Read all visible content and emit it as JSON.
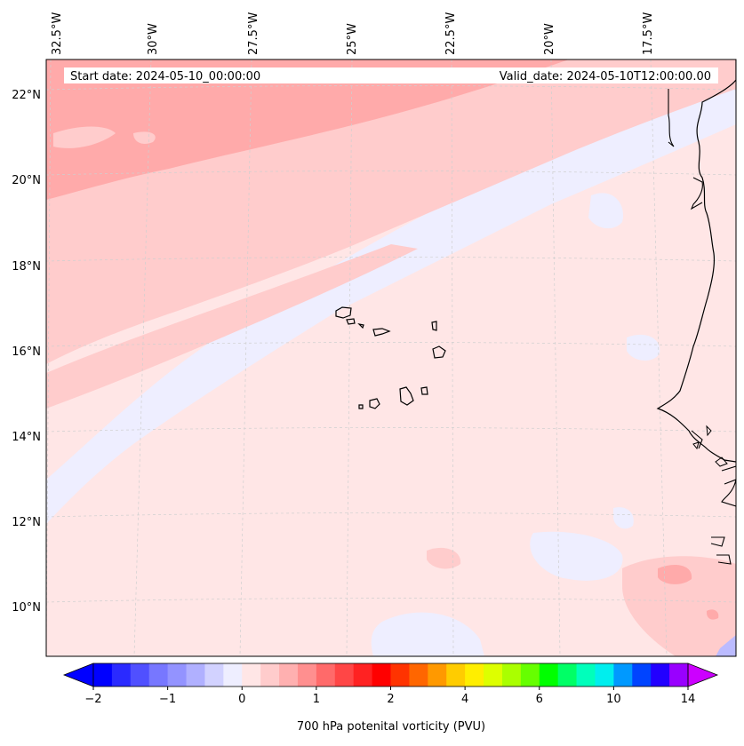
{
  "header": {
    "start_date": "Start date: 2024-05-10_00:00:00",
    "valid_date": "Valid_date: 2024-05-10T12:00:00.00"
  },
  "map": {
    "longitude_labels": [
      "32.5°W",
      "30°W",
      "27.5°W",
      "25°W",
      "22.5°W",
      "20°W",
      "17.5°W"
    ],
    "latitude_labels": [
      "22°N",
      "20°N",
      "18°N",
      "16°N",
      "14°N",
      "12°N",
      "10°N"
    ],
    "field_colors": {
      "background": "#ffe6e6",
      "weak_positive": "#ffcccc",
      "moderate_positive": "#ffaaaa",
      "weak_negative": "#eeeeff",
      "negative": "#bbbbff"
    }
  },
  "colorbar": {
    "label": "700 hPa potenital vorticity (PVU)",
    "ticks": [
      "−2",
      "−1",
      "0",
      "1",
      "2",
      "4",
      "6",
      "10",
      "14"
    ],
    "colors": [
      "#0000ff",
      "#2a2aff",
      "#5050ff",
      "#7777ff",
      "#9393ff",
      "#b0b0ff",
      "#d2d2ff",
      "#eeeeff",
      "#ffe6e6",
      "#ffcccc",
      "#ffb0b0",
      "#ff8f8f",
      "#ff6a6a",
      "#ff4646",
      "#ff2222",
      "#ff0000",
      "#ff3300",
      "#ff6600",
      "#ff9900",
      "#ffcc00",
      "#ffee00",
      "#ddff00",
      "#aaff00",
      "#66ff00",
      "#00ff00",
      "#00ff66",
      "#00ffbb",
      "#00eeee",
      "#0099ff",
      "#0044ff",
      "#2200ff",
      "#9900ff"
    ],
    "extend_low_color": "#0000ff",
    "extend_high_color": "#cc00ff"
  }
}
